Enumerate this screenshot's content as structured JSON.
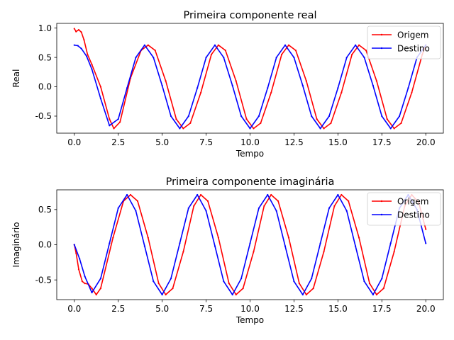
{
  "chart_data": [
    {
      "type": "line",
      "title": "Primeira componente real",
      "xlabel": "Tempo",
      "ylabel": "Real",
      "xlim": [
        -1.0,
        21.0
      ],
      "ylim": [
        -0.79,
        1.08
      ],
      "xticks": [
        "0.0",
        "2.5",
        "5.0",
        "7.5",
        "10.0",
        "12.5",
        "15.0",
        "17.5",
        "20.0"
      ],
      "xtick_values": [
        0,
        2.5,
        5,
        7.5,
        10,
        12.5,
        15,
        17.5,
        20
      ],
      "yticks": [
        "-0.5",
        "0.0",
        "0.5",
        "1.0"
      ],
      "ytick_values": [
        -0.5,
        0,
        0.5,
        1.0
      ],
      "legend": "upper right",
      "series": [
        {
          "name": "Origem",
          "color": "#ff0000",
          "x": [
            0.0,
            0.1,
            0.25,
            0.4,
            0.55,
            0.75,
            1.0,
            1.5,
            2.0,
            2.25,
            2.6,
            3.2,
            3.8,
            4.2,
            4.6,
            5.2,
            5.8,
            6.2,
            6.6,
            7.2,
            7.8,
            8.2,
            8.6,
            9.2,
            9.8,
            10.2,
            10.6,
            11.2,
            11.8,
            12.2,
            12.6,
            13.2,
            13.8,
            14.2,
            14.6,
            15.2,
            15.8,
            16.2,
            16.6,
            17.2,
            17.8,
            18.2,
            18.6,
            19.2,
            19.8,
            20.0
          ],
          "y": [
            0.99,
            0.94,
            0.97,
            0.93,
            0.8,
            0.55,
            0.38,
            0.0,
            -0.55,
            -0.71,
            -0.6,
            0.15,
            0.62,
            0.71,
            0.62,
            0.1,
            -0.55,
            -0.71,
            -0.62,
            -0.1,
            0.55,
            0.71,
            0.62,
            0.1,
            -0.55,
            -0.71,
            -0.62,
            -0.1,
            0.55,
            0.71,
            0.62,
            0.1,
            -0.55,
            -0.71,
            -0.62,
            -0.1,
            0.55,
            0.71,
            0.62,
            0.1,
            -0.55,
            -0.71,
            -0.62,
            -0.1,
            0.55,
            0.71
          ]
        },
        {
          "name": "Destino",
          "color": "#0000ff",
          "x": [
            0.0,
            0.2,
            0.4,
            0.7,
            1.0,
            1.5,
            2.0,
            2.5,
            3.0,
            3.5,
            4.0,
            4.5,
            5.0,
            5.5,
            6.0,
            6.5,
            7.0,
            7.5,
            8.0,
            8.5,
            9.0,
            9.5,
            10.0,
            10.5,
            11.0,
            11.5,
            12.0,
            12.5,
            13.0,
            13.5,
            14.0,
            14.5,
            15.0,
            15.5,
            16.0,
            16.5,
            17.0,
            17.5,
            18.0,
            18.5,
            19.0,
            19.5,
            20.0
          ],
          "y": [
            0.71,
            0.7,
            0.65,
            0.52,
            0.3,
            -0.2,
            -0.66,
            -0.55,
            -0.02,
            0.5,
            0.71,
            0.5,
            0.02,
            -0.5,
            -0.71,
            -0.5,
            -0.02,
            0.5,
            0.71,
            0.5,
            0.02,
            -0.5,
            -0.71,
            -0.5,
            -0.02,
            0.5,
            0.71,
            0.5,
            0.02,
            -0.5,
            -0.71,
            -0.5,
            -0.02,
            0.5,
            0.71,
            0.5,
            0.02,
            -0.5,
            -0.71,
            -0.5,
            -0.02,
            0.5,
            0.71
          ]
        }
      ]
    },
    {
      "type": "line",
      "title": "Primeira componente imaginária",
      "xlabel": "Tempo",
      "ylabel": "Imaginário",
      "xlim": [
        -1.0,
        21.0
      ],
      "ylim": [
        -0.78,
        0.78
      ],
      "xticks": [
        "0.0",
        "2.5",
        "5.0",
        "7.5",
        "10.0",
        "12.5",
        "15.0",
        "17.5",
        "20.0"
      ],
      "xtick_values": [
        0,
        2.5,
        5,
        7.5,
        10,
        12.5,
        15,
        17.5,
        20
      ],
      "yticks": [
        "-0.5",
        "0.0",
        "0.5"
      ],
      "ytick_values": [
        -0.5,
        0,
        0.5
      ],
      "legend": "upper right",
      "series": [
        {
          "name": "Origem",
          "color": "#ff0000",
          "x": [
            0.0,
            0.1,
            0.25,
            0.45,
            0.6,
            0.8,
            1.0,
            1.25,
            1.5,
            2.2,
            2.8,
            3.2,
            3.6,
            4.2,
            4.8,
            5.2,
            5.6,
            6.2,
            6.8,
            7.2,
            7.6,
            8.2,
            8.8,
            9.2,
            9.6,
            10.2,
            10.8,
            11.2,
            11.6,
            12.2,
            12.8,
            13.2,
            13.6,
            14.2,
            14.8,
            15.2,
            15.6,
            16.2,
            16.8,
            17.2,
            17.6,
            18.2,
            18.8,
            19.2,
            19.6,
            20.0
          ],
          "y": [
            0.0,
            -0.12,
            -0.35,
            -0.52,
            -0.55,
            -0.56,
            -0.62,
            -0.71,
            -0.62,
            0.1,
            0.62,
            0.71,
            0.62,
            0.1,
            -0.55,
            -0.71,
            -0.62,
            -0.1,
            0.55,
            0.71,
            0.62,
            0.1,
            -0.55,
            -0.71,
            -0.62,
            -0.1,
            0.55,
            0.71,
            0.62,
            0.1,
            -0.55,
            -0.71,
            -0.62,
            -0.1,
            0.55,
            0.71,
            0.62,
            0.1,
            -0.55,
            -0.71,
            -0.62,
            -0.1,
            0.55,
            0.71,
            0.6,
            0.22
          ]
        },
        {
          "name": "Destino",
          "color": "#0000ff",
          "x": [
            0.0,
            0.3,
            0.6,
            1.0,
            1.5,
            2.0,
            2.5,
            3.0,
            3.5,
            4.0,
            4.5,
            5.0,
            5.5,
            6.0,
            6.5,
            7.0,
            7.5,
            8.0,
            8.5,
            9.0,
            9.5,
            10.0,
            10.5,
            11.0,
            11.5,
            12.0,
            12.5,
            13.0,
            13.5,
            14.0,
            14.5,
            15.0,
            15.5,
            16.0,
            16.5,
            17.0,
            17.5,
            18.0,
            18.5,
            19.0,
            19.5,
            20.0
          ],
          "y": [
            0.0,
            -0.2,
            -0.45,
            -0.68,
            -0.48,
            0.02,
            0.52,
            0.71,
            0.48,
            -0.02,
            -0.52,
            -0.71,
            -0.48,
            0.02,
            0.52,
            0.71,
            0.48,
            -0.02,
            -0.52,
            -0.71,
            -0.48,
            0.02,
            0.52,
            0.71,
            0.48,
            -0.02,
            -0.52,
            -0.71,
            -0.48,
            0.02,
            0.52,
            0.71,
            0.48,
            -0.02,
            -0.52,
            -0.71,
            -0.48,
            0.02,
            0.52,
            0.71,
            0.5,
            0.02
          ]
        }
      ]
    }
  ]
}
